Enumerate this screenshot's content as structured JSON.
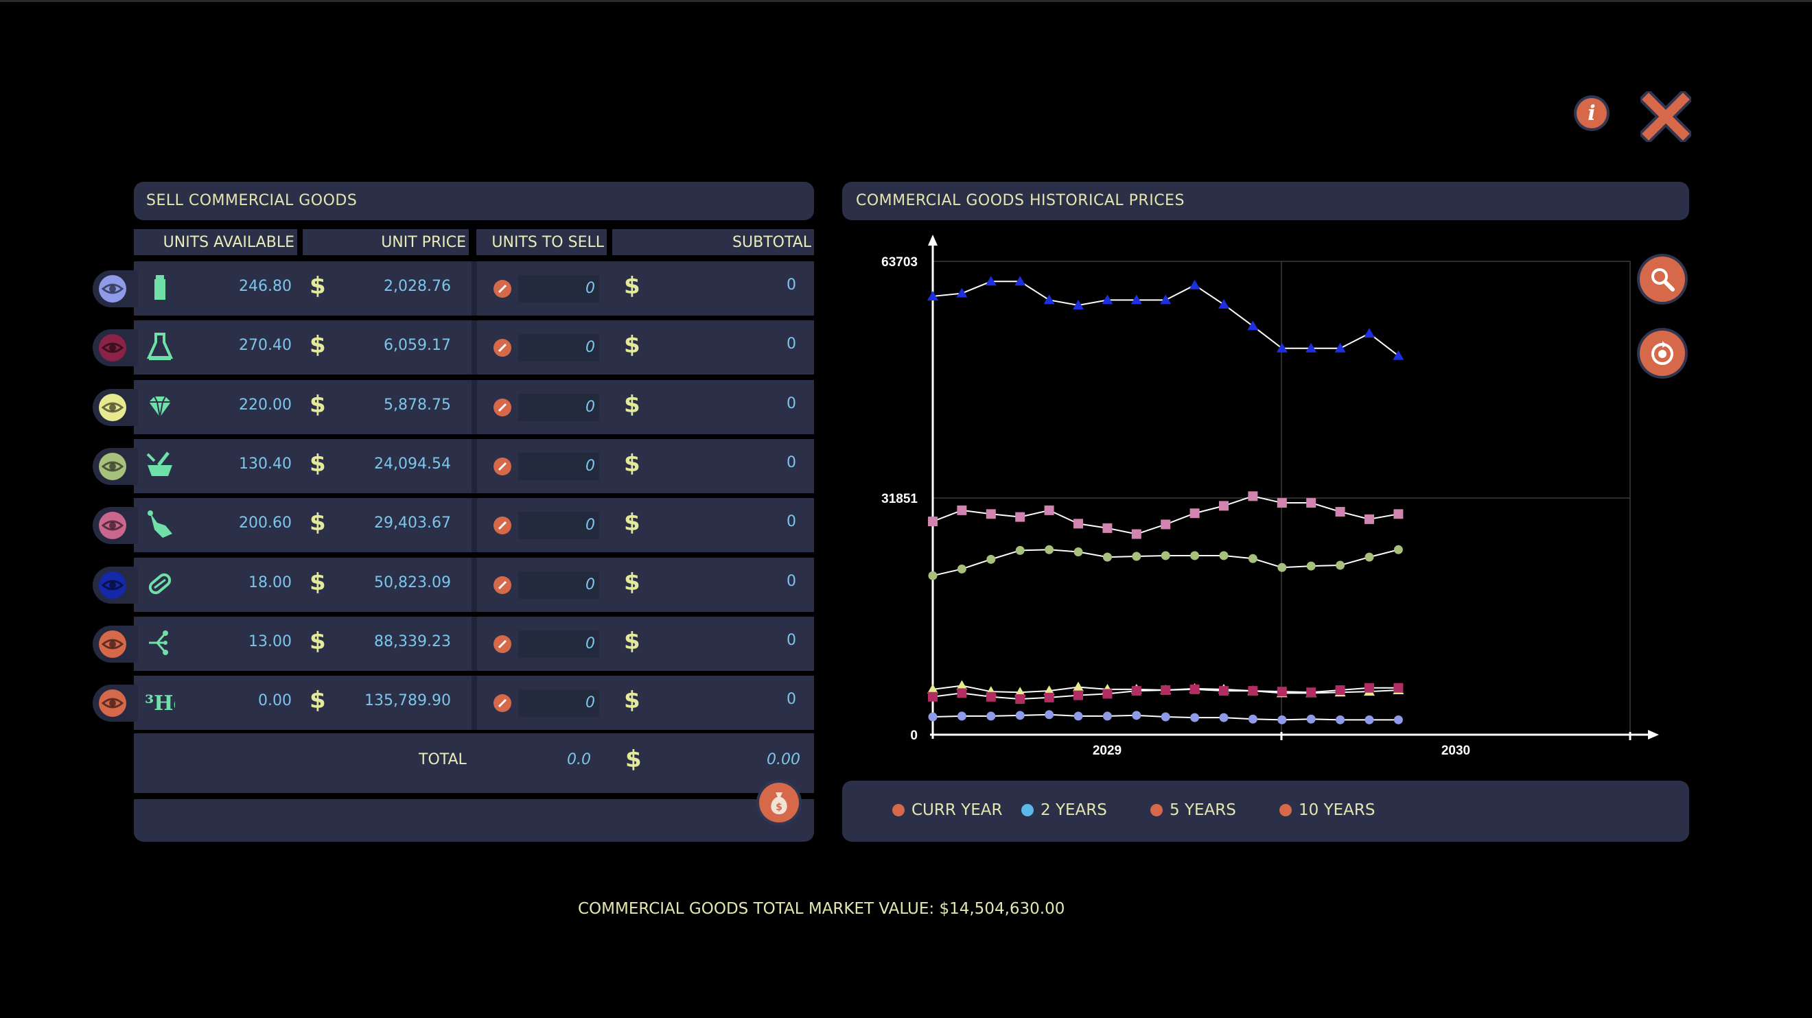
{
  "header": {
    "info_label": "i"
  },
  "sell_panel": {
    "title": "SELL COMMERCIAL GOODS",
    "columns": {
      "units_available": "UNITS AVAILABLE",
      "unit_price": "UNIT PRICE",
      "units_to_sell": "UNITS TO SELL",
      "subtotal": "SUBTOTAL"
    },
    "currency": "$",
    "rows": [
      {
        "icon": "bottle-icon",
        "eye": "#8f9be8",
        "avail": "246.80",
        "price": "2,028.76",
        "sell": "0",
        "subtotal": "0"
      },
      {
        "icon": "flask-icon",
        "eye": "#8a2346",
        "avail": "270.40",
        "price": "6,059.17",
        "sell": "0",
        "subtotal": "0"
      },
      {
        "icon": "gem-icon",
        "eye": "#e6e98e",
        "avail": "220.00",
        "price": "5,878.75",
        "sell": "0",
        "subtotal": "0"
      },
      {
        "icon": "mortar-icon",
        "eye": "#a7c07c",
        "avail": "130.40",
        "price": "24,094.54",
        "sell": "0",
        "subtotal": "0"
      },
      {
        "icon": "hand-icon",
        "eye": "#c9678f",
        "avail": "200.60",
        "price": "29,403.67",
        "sell": "0",
        "subtotal": "0"
      },
      {
        "icon": "capsule-icon",
        "eye": "#1528a8",
        "avail": "18.00",
        "price": "50,823.09",
        "sell": "0",
        "subtotal": "0"
      },
      {
        "icon": "molecule-icon",
        "eye": "#d6694a",
        "avail": "13.00",
        "price": "88,339.23",
        "sell": "0",
        "subtotal": "0"
      },
      {
        "icon": "helium3-icon",
        "eye": "#d6694a",
        "avail": "0.00",
        "price": "135,789.90",
        "sell": "0",
        "subtotal": "0"
      }
    ],
    "he_label": "³He",
    "total_label": "TOTAL",
    "total_units": "0.0",
    "total_value": "0.00"
  },
  "chart_panel": {
    "title": "COMMERCIAL GOODS HISTORICAL PRICES"
  },
  "chart_data": {
    "type": "line",
    "title": "COMMERCIAL GOODS HISTORICAL PRICES",
    "x": [
      1,
      2,
      3,
      4,
      5,
      6,
      7,
      8,
      9,
      10,
      11,
      12,
      13,
      14,
      15,
      16,
      17
    ],
    "xtick_labels": [
      "2029",
      "2030"
    ],
    "yticks": [
      "63703",
      "31851",
      "0"
    ],
    "ylim": [
      0,
      63703
    ],
    "grid": true,
    "series": [
      {
        "color": "#1e2fe0",
        "marker": "triangle",
        "values": [
          59000,
          59400,
          61000,
          61000,
          58500,
          57800,
          58500,
          58500,
          58500,
          60500,
          57900,
          55000,
          52000,
          52000,
          52000,
          54000,
          51000
        ]
      },
      {
        "color": "#d184b0",
        "marker": "square",
        "values": [
          28700,
          30200,
          29700,
          29300,
          30200,
          28400,
          27800,
          27000,
          28300,
          29800,
          30800,
          32100,
          31200,
          31200,
          30000,
          29000,
          29700
        ]
      },
      {
        "color": "#a7c07c",
        "marker": "circle",
        "values": [
          21400,
          22300,
          23600,
          24800,
          24900,
          24600,
          23900,
          24000,
          24100,
          24100,
          24100,
          23700,
          22500,
          22700,
          22800,
          23900,
          24900
        ]
      },
      {
        "color": "#e6e98e",
        "marker": "triangle",
        "values": [
          6100,
          6600,
          5800,
          5700,
          5900,
          6400,
          6100,
          6100,
          6000,
          6200,
          6100,
          5900,
          5600,
          5600,
          5700,
          5800,
          6000
        ]
      },
      {
        "color": "#b22d64",
        "marker": "square",
        "values": [
          5100,
          5600,
          5100,
          4800,
          5000,
          5300,
          5500,
          5900,
          6000,
          6100,
          5900,
          5900,
          5800,
          5700,
          6000,
          6300,
          6300
        ]
      },
      {
        "color": "#8f9be8",
        "marker": "circle",
        "values": [
          2400,
          2500,
          2500,
          2600,
          2700,
          2500,
          2500,
          2600,
          2400,
          2300,
          2300,
          2100,
          2000,
          2100,
          2000,
          2000,
          2000
        ]
      }
    ],
    "legend": [
      {
        "label": "CURR YEAR",
        "color": "#d6694a"
      },
      {
        "label": "2 YEARS",
        "color": "#5bb8e8"
      },
      {
        "label": "5 YEARS",
        "color": "#d6694a"
      },
      {
        "label": "10 YEARS",
        "color": "#d6694a"
      }
    ],
    "legend_position": "bottom"
  },
  "footer": {
    "market_value": "COMMERCIAL GOODS TOTAL MARKET VALUE: $14,504,630.00"
  }
}
